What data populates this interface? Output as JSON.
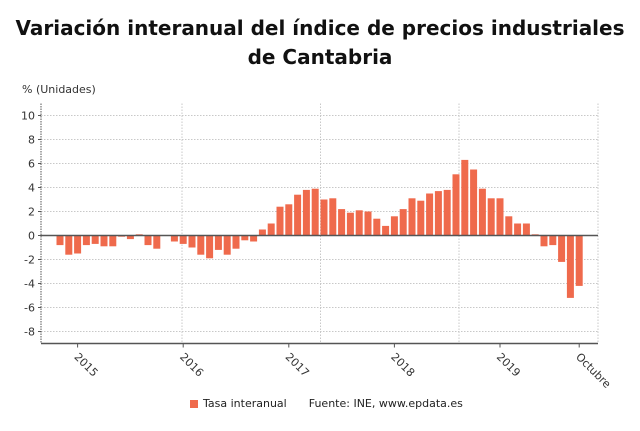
{
  "chart_data": {
    "type": "bar",
    "title": "Variación interanual del índice de precios industriales de Cantabria",
    "ylabel": "% (Unidades)",
    "xlabel": "",
    "ylim": [
      -9,
      11
    ],
    "yticks": [
      10,
      8,
      6,
      4,
      2,
      0,
      -2,
      -4,
      -6,
      -8
    ],
    "grid": true,
    "legend_placement": "bottom",
    "color": "#ef6a4c",
    "x_start": "2014-11",
    "x_end": "2019-10",
    "xtick_labels": [
      {
        "label": "2015",
        "month": "2015-01"
      },
      {
        "label": "2016",
        "month": "2016-01"
      },
      {
        "label": "2017",
        "month": "2017-01"
      },
      {
        "label": "2018",
        "month": "2018-01"
      },
      {
        "label": "2019",
        "month": "2019-01"
      },
      {
        "label": "Octubre",
        "month": "2019-10"
      }
    ],
    "series": [
      {
        "name": "Tasa interanual",
        "values": [
          -0.8,
          -1.6,
          -1.5,
          -0.8,
          -0.7,
          -0.9,
          -0.9,
          -0.1,
          -0.3,
          0.1,
          -0.8,
          -1.1,
          0.0,
          -0.5,
          -0.7,
          -1.0,
          -1.6,
          -1.9,
          -1.2,
          -1.6,
          -1.1,
          -0.4,
          -0.5,
          0.5,
          1.0,
          2.4,
          2.6,
          3.4,
          3.8,
          3.9,
          3.0,
          3.1,
          2.2,
          1.9,
          2.1,
          2.0,
          1.4,
          0.8,
          1.6,
          2.2,
          3.1,
          2.9,
          3.5,
          3.7,
          3.8,
          5.1,
          6.3,
          5.5,
          3.9,
          3.1,
          3.1,
          1.6,
          1.0,
          1.0,
          0.1,
          -0.9,
          -0.8,
          -2.2,
          -5.2,
          -4.2
        ]
      }
    ],
    "source": "Fuente: INE, www.epdata.es"
  }
}
